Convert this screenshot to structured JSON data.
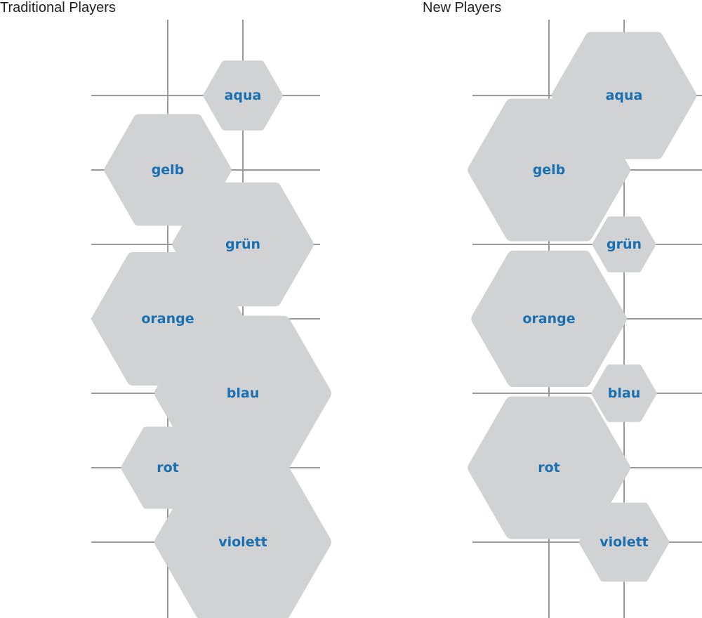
{
  "chart_data": [
    {
      "type": "hexagon-bubble",
      "title": "Traditional Players",
      "color_hex": "#d0d2d4",
      "label_color": "#1a6fb0",
      "grid_color": "#9a9a9a",
      "rows": [
        "aqua",
        "gelb",
        "grün",
        "orange",
        "blau",
        "rot",
        "violett"
      ],
      "items": [
        {
          "label": "aqua",
          "column": 2,
          "size": 0.45
        },
        {
          "label": "gelb",
          "column": 1,
          "size": 0.72
        },
        {
          "label": "grün",
          "column": 2,
          "size": 0.8
        },
        {
          "label": "orange",
          "column": 1,
          "size": 0.86
        },
        {
          "label": "blau",
          "column": 2,
          "size": 1.0
        },
        {
          "label": "rot",
          "column": 1,
          "size": 0.53
        },
        {
          "label": "violett",
          "column": 2,
          "size": 1.0
        }
      ]
    },
    {
      "type": "hexagon-bubble",
      "title": "New Players",
      "color_hex": "#d0d2d4",
      "label_color": "#1a6fb0",
      "grid_color": "#9a9a9a",
      "rows": [
        "aqua",
        "gelb",
        "grün",
        "orange",
        "blau",
        "rot",
        "violett"
      ],
      "items": [
        {
          "label": "aqua",
          "column": 2,
          "size": 0.82
        },
        {
          "label": "gelb",
          "column": 1,
          "size": 0.92
        },
        {
          "label": "grün",
          "column": 2,
          "size": 0.36
        },
        {
          "label": "orange",
          "column": 1,
          "size": 0.88
        },
        {
          "label": "blau",
          "column": 2,
          "size": 0.37
        },
        {
          "label": "rot",
          "column": 1,
          "size": 0.92
        },
        {
          "label": "violett",
          "column": 2,
          "size": 0.51
        }
      ]
    }
  ]
}
